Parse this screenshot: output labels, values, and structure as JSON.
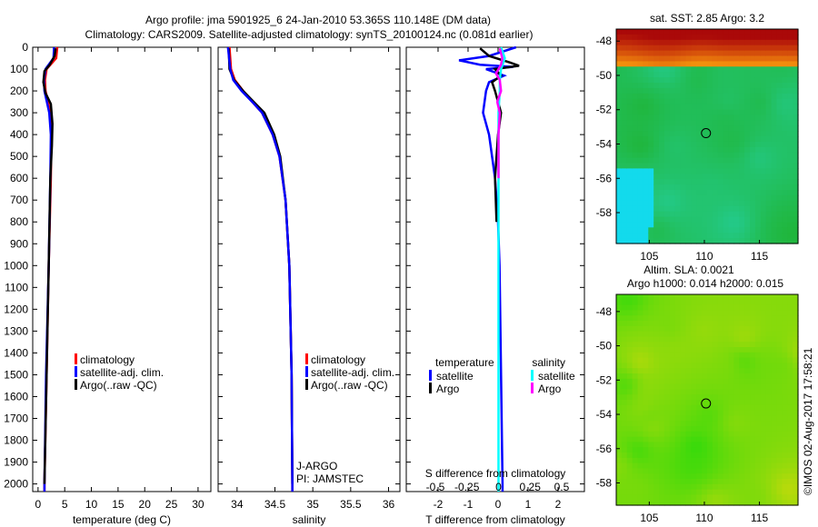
{
  "title": {
    "line1": "Argo profile: jma 5901925_6 24-Jan-2010 53.365S 110.148E (DM data)",
    "line2": "Climatology: CARS2009. Satellite-adjusted climatology: synTS_20100124.nc (0.081d earlier)"
  },
  "credit": "©IMOS 02-Aug-2017 17:58:21",
  "colors": {
    "climatology": "#ff0000",
    "satellite": "#0000ff",
    "argo": "#000000",
    "sat_salinity": "#00ffff",
    "argo_salinity": "#ff00ff"
  },
  "chart_data": [
    {
      "id": "temp",
      "type": "line",
      "xlabel": "temperature (deg C)",
      "xlim": [
        -1,
        32.4
      ],
      "ylim": [
        0,
        2035
      ],
      "xticks": [
        0,
        5,
        10,
        15,
        20,
        25,
        30
      ],
      "yticks": [
        0,
        100,
        200,
        300,
        400,
        500,
        600,
        700,
        800,
        900,
        1000,
        1100,
        1200,
        1300,
        1400,
        1500,
        1600,
        1700,
        1800,
        1900,
        2000
      ],
      "legend": [
        "climatology",
        "satellite-adj. clim.",
        "Argo(..raw -QC)"
      ],
      "series": [
        {
          "name": "climatology",
          "color": "#ff0000",
          "depth": [
            0,
            50,
            100,
            150,
            200,
            300,
            400,
            600,
            1000,
            1500,
            2000,
            2035
          ],
          "values": [
            3.6,
            3.4,
            1.6,
            1.3,
            1.4,
            2.3,
            2.5,
            2.4,
            2.0,
            1.6,
            1.2,
            1.2
          ]
        },
        {
          "name": "satellite-adj. clim.",
          "color": "#0000ff",
          "depth": [
            0,
            50,
            100,
            150,
            200,
            300,
            400,
            600,
            1000,
            1500,
            2000,
            2035
          ],
          "values": [
            3.0,
            2.9,
            1.4,
            1.1,
            1.2,
            2.1,
            2.4,
            2.3,
            2.0,
            1.5,
            1.2,
            1.2
          ]
        },
        {
          "name": "Argo",
          "color": "#000000",
          "depth": [
            5,
            40,
            80,
            110,
            160,
            210,
            260,
            350,
            450,
            600,
            1000,
            1500,
            2000
          ],
          "values": [
            3.3,
            3.1,
            2.2,
            1.2,
            1.0,
            1.4,
            2.4,
            2.7,
            2.6,
            2.3,
            2.0,
            1.6,
            1.2
          ]
        }
      ]
    },
    {
      "id": "sal",
      "type": "line",
      "xlabel": "salinity",
      "xlim": [
        33.75,
        36.15
      ],
      "ylim": [
        0,
        2035
      ],
      "xticks": [
        34,
        34.5,
        35,
        35.5,
        36
      ],
      "legend": [
        "climatology",
        "satellite-adj. clim.",
        "Argo(..raw -QC)"
      ],
      "annotation": [
        "J-ARGO",
        "PI: JAMSTEC"
      ],
      "series": [
        {
          "name": "climatology",
          "color": "#ff0000",
          "depth": [
            0,
            100,
            150,
            200,
            250,
            300,
            400,
            500,
            700,
            1000,
            1500,
            2000,
            2035
          ],
          "values": [
            33.9,
            33.92,
            33.97,
            34.08,
            34.2,
            34.33,
            34.47,
            34.56,
            34.64,
            34.69,
            34.72,
            34.73,
            34.73
          ]
        },
        {
          "name": "Argo",
          "color": "#000000",
          "depth": [
            5,
            100,
            150,
            200,
            250,
            300,
            400,
            500,
            700,
            1000,
            1500,
            2000
          ],
          "values": [
            33.89,
            33.9,
            33.96,
            34.08,
            34.22,
            34.36,
            34.49,
            34.57,
            34.64,
            34.69,
            34.72,
            34.73
          ]
        },
        {
          "name": "satellite-adj. clim.",
          "color": "#0000ff",
          "depth": [
            0,
            100,
            150,
            200,
            250,
            300,
            400,
            500,
            700,
            1000,
            1500,
            2000,
            2035
          ],
          "values": [
            33.88,
            33.91,
            33.95,
            34.06,
            34.2,
            34.33,
            34.47,
            34.56,
            34.64,
            34.69,
            34.72,
            34.73,
            34.73
          ]
        }
      ]
    },
    {
      "id": "diff",
      "type": "line",
      "xlabel": "T difference from climatology",
      "x2label": "S difference from climatology",
      "xlim": [
        -3.06,
        2.88
      ],
      "x2lim": [
        -0.73,
        0.68
      ],
      "ylim": [
        0,
        2035
      ],
      "xticks": [
        -2,
        -1,
        0,
        1,
        2
      ],
      "x2ticks": [
        -0.5,
        -0.25,
        0,
        0.25,
        0.5
      ],
      "legend_t_title": "temperature",
      "legend_s_title": "salinity",
      "legend": [
        "satellite",
        "Argo",
        "satellite",
        "Argo"
      ],
      "series": [
        {
          "name": "T satellite",
          "axis": "T",
          "color": "#0000ff",
          "depth": [
            0,
            40,
            60,
            80,
            90,
            100,
            130,
            160,
            200,
            300,
            400,
            600,
            800,
            1000,
            1500,
            2000,
            2035
          ],
          "values": [
            0.6,
            -0.3,
            -1.3,
            -0.6,
            0.5,
            -0.4,
            0.2,
            -0.3,
            -0.4,
            -0.5,
            -0.3,
            -0.1,
            0,
            0.05,
            0.1,
            0.15,
            0.15
          ]
        },
        {
          "name": "T Argo",
          "axis": "T",
          "color": "#000000",
          "depth": [
            5,
            40,
            70,
            85,
            100,
            130,
            160,
            200,
            300,
            400,
            600,
            800
          ],
          "values": [
            -0.6,
            -0.3,
            0.4,
            0.7,
            -0.1,
            0.1,
            -0.2,
            -0.1,
            0.1,
            0,
            -0.1,
            -0.05
          ]
        },
        {
          "name": "S satellite",
          "axis": "S",
          "color": "#00ffff",
          "depth": [
            0,
            50,
            100,
            150,
            200,
            300,
            500,
            1000,
            1500,
            2000,
            2035
          ],
          "values": [
            0.02,
            0.05,
            0.02,
            0.01,
            0.01,
            0,
            0,
            0,
            0,
            0,
            0
          ]
        },
        {
          "name": "S Argo",
          "axis": "S",
          "color": "#ff00ff",
          "depth": [
            5,
            50,
            80,
            120,
            150,
            200,
            250,
            300,
            400,
            600
          ],
          "values": [
            0.01,
            0.03,
            0.02,
            -0.02,
            0.01,
            0.02,
            -0.01,
            0.01,
            0,
            0
          ]
        }
      ]
    },
    {
      "id": "sst_map",
      "type": "heatmap",
      "title": "sat. SST: 2.85 Argo: 3.2",
      "xlim": [
        102,
        118.5
      ],
      "ylim": [
        -59.8,
        -47.3
      ],
      "xticks": [
        105,
        110,
        115
      ],
      "yticks": [
        -48,
        -50,
        -52,
        -54,
        -56,
        -58
      ],
      "marker": [
        110.148,
        -53.365
      ]
    },
    {
      "id": "sla_map",
      "type": "heatmap",
      "title": "Altim. SLA: 0.0021",
      "subtitle": "Argo h1000: 0.014 h2000: 0.015",
      "xlim": [
        102,
        118.5
      ],
      "ylim": [
        -59.3,
        -47.0
      ],
      "xticks": [
        105,
        110,
        115
      ],
      "yticks": [
        -48,
        -50,
        -52,
        -54,
        -56,
        -58
      ],
      "marker": [
        110.148,
        -53.365
      ]
    }
  ]
}
